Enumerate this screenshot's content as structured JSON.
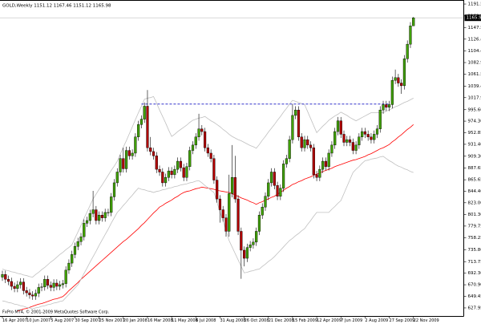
{
  "chart_data": {
    "type": "candlestick",
    "title": "GOLD,Weekly  1151.12 1167.46 1151.12 1165.98",
    "footer": "FxPro MT4, © 2001-2009 MetaQuotes Software Corp.",
    "up_color": "#3fa000",
    "down_color": "#b00000",
    "categories": [
      "16 Apr 2007",
      null,
      null,
      null,
      null,
      null,
      null,
      null,
      "10 Jun 2007",
      null,
      null,
      null,
      null,
      null,
      null,
      null,
      "5 Aug 2007",
      null,
      null,
      null,
      null,
      null,
      null,
      null,
      "30 Sep 2007",
      null,
      null,
      null,
      null,
      null,
      null,
      null,
      "25 Nov 2007",
      null,
      null,
      null,
      null,
      null,
      null,
      null,
      "20 Jan 2008",
      null,
      null,
      null,
      null,
      null,
      null,
      null,
      "16 Mar 2008",
      null,
      null,
      null,
      null,
      null,
      null,
      null,
      "11 May 2008",
      null,
      null,
      null,
      null,
      null,
      null,
      null,
      "6 Jul 2008",
      null,
      null,
      null,
      null,
      null,
      null,
      null,
      "31 Aug 2008",
      null,
      null,
      null,
      null,
      null,
      null,
      null,
      "26 Oct 2008",
      null,
      null,
      null,
      null,
      null,
      null,
      null,
      "21 Dec 2008",
      null,
      null,
      null,
      null,
      null,
      null,
      null,
      "15 Feb 2009",
      null,
      null,
      null,
      null,
      null,
      null,
      null,
      "12 Apr 2009",
      null,
      null,
      null,
      null,
      null,
      null,
      null,
      "7 Jun 2009",
      null,
      null,
      null,
      null,
      null,
      null,
      null,
      "2 Aug 2009",
      null,
      null,
      null,
      null,
      null,
      null,
      null,
      "27 Sep 2009",
      null,
      null,
      null,
      null,
      null,
      null,
      null,
      "22 Nov 2009"
    ],
    "open": [
      685,
      690,
      681,
      677,
      668,
      664,
      671,
      676,
      660,
      656,
      652,
      650,
      655,
      666,
      667,
      681,
      670,
      666,
      674,
      668,
      671,
      673,
      698,
      711,
      727,
      742,
      751,
      760,
      785,
      790,
      803,
      810,
      790,
      800,
      795,
      805,
      805,
      834,
      860,
      880,
      905,
      886,
      920,
      910,
      915,
      945,
      968,
      978,
      1002,
      925,
      918,
      910,
      885,
      880,
      860,
      870,
      882,
      875,
      885,
      900,
      888,
      870,
      890,
      920,
      930,
      945,
      960,
      955,
      925,
      915,
      905,
      865,
      830,
      810,
      795,
      770,
      840,
      870,
      830,
      770,
      735,
      720,
      740,
      745,
      750,
      770,
      800,
      815,
      835,
      860,
      880,
      855,
      835,
      850,
      895,
      905,
      940,
      985,
      995,
      945,
      925,
      940,
      930,
      925,
      875,
      870,
      885,
      900,
      890,
      915,
      930,
      955,
      975,
      950,
      935,
      940,
      935,
      920,
      930,
      945,
      955,
      950,
      945,
      940,
      950,
      960,
      995,
      1005,
      1000,
      1005,
      1050,
      1055,
      1045,
      1040,
      1090,
      1117,
      1151.12
    ],
    "high": [
      697,
      697,
      688,
      684,
      675,
      678,
      683,
      683,
      667,
      663,
      659,
      662,
      673,
      674,
      688,
      688,
      677,
      681,
      681,
      678,
      680,
      705,
      718,
      734,
      749,
      758,
      767,
      792,
      797,
      810,
      845,
      817,
      807,
      807,
      812,
      812,
      841,
      867,
      887,
      912,
      925,
      927,
      927,
      922,
      952,
      975,
      985,
      1009,
      1032,
      945,
      925,
      917,
      892,
      887,
      877,
      889,
      889,
      892,
      907,
      907,
      895,
      897,
      927,
      937,
      952,
      988,
      967,
      962,
      932,
      922,
      912,
      872,
      837,
      817,
      802,
      875,
      930,
      910,
      837,
      777,
      742,
      747,
      752,
      757,
      777,
      807,
      822,
      842,
      867,
      887,
      887,
      862,
      857,
      902,
      912,
      947,
      1006,
      1002,
      1002,
      952,
      947,
      947,
      937,
      932,
      882,
      892,
      907,
      907,
      922,
      937,
      962,
      982,
      982,
      957,
      947,
      947,
      942,
      937,
      952,
      962,
      962,
      957,
      952,
      957,
      967,
      1002,
      1012,
      1012,
      1012,
      1057,
      1070,
      1062,
      1052,
      1097,
      1124,
      1158,
      1167.46
    ],
    "low": [
      678,
      674,
      670,
      661,
      657,
      657,
      664,
      653,
      649,
      645,
      643,
      643,
      648,
      659,
      660,
      663,
      659,
      659,
      661,
      661,
      664,
      666,
      691,
      704,
      720,
      735,
      744,
      753,
      778,
      783,
      796,
      783,
      783,
      788,
      788,
      798,
      798,
      827,
      853,
      873,
      879,
      879,
      903,
      903,
      908,
      938,
      961,
      971,
      918,
      911,
      903,
      878,
      873,
      853,
      853,
      863,
      868,
      868,
      878,
      881,
      863,
      863,
      883,
      913,
      923,
      938,
      948,
      918,
      908,
      898,
      858,
      823,
      786,
      788,
      760,
      760,
      833,
      823,
      763,
      682,
      705,
      713,
      733,
      738,
      743,
      763,
      793,
      808,
      828,
      853,
      848,
      828,
      828,
      843,
      888,
      898,
      933,
      978,
      938,
      918,
      918,
      923,
      918,
      868,
      863,
      863,
      878,
      883,
      883,
      908,
      923,
      948,
      943,
      928,
      928,
      928,
      913,
      913,
      923,
      938,
      943,
      938,
      933,
      933,
      943,
      953,
      988,
      993,
      993,
      998,
      1043,
      1038,
      1025,
      1033,
      1083,
      1110,
      1151.12
    ],
    "close": [
      690,
      681,
      677,
      668,
      664,
      671,
      676,
      660,
      656,
      652,
      650,
      655,
      666,
      667,
      681,
      670,
      666,
      674,
      668,
      671,
      673,
      698,
      711,
      727,
      742,
      751,
      760,
      785,
      790,
      803,
      810,
      790,
      800,
      795,
      805,
      805,
      834,
      860,
      880,
      905,
      886,
      920,
      910,
      915,
      945,
      968,
      978,
      1002,
      925,
      918,
      910,
      885,
      880,
      860,
      870,
      882,
      875,
      885,
      900,
      888,
      870,
      890,
      920,
      930,
      945,
      960,
      955,
      925,
      915,
      905,
      865,
      830,
      810,
      795,
      770,
      840,
      870,
      830,
      770,
      735,
      720,
      740,
      745,
      750,
      770,
      800,
      815,
      835,
      860,
      880,
      855,
      835,
      850,
      895,
      905,
      940,
      985,
      995,
      945,
      925,
      940,
      930,
      925,
      875,
      870,
      885,
      900,
      890,
      915,
      930,
      955,
      975,
      950,
      935,
      940,
      935,
      920,
      930,
      945,
      955,
      950,
      945,
      940,
      950,
      960,
      995,
      1005,
      1000,
      1005,
      1050,
      1055,
      1045,
      1040,
      1090,
      1117,
      1151,
      1165.98
    ],
    "lines": [
      {
        "color": "#ff0000",
        "values": [
          null,
          null,
          null,
          null,
          null,
          622,
          624,
          626,
          627,
          629,
          631,
          633,
          635,
          636,
          638,
          640,
          642,
          644,
          645,
          647,
          649,
          654,
          660,
          665,
          670,
          675,
          681,
          686,
          691,
          696,
          701,
          706,
          711,
          716,
          721,
          726,
          731,
          736,
          741,
          746,
          751,
          755,
          760,
          765,
          770,
          775,
          781,
          786,
          792,
          798,
          804,
          809,
          815,
          818,
          822,
          825,
          828,
          832,
          835,
          839,
          842,
          844,
          845,
          847,
          849,
          850,
          852,
          851,
          850,
          849,
          848,
          846,
          845,
          844,
          843,
          842,
          840,
          837,
          835,
          832,
          830,
          828,
          825,
          823,
          820,
          823,
          825,
          828,
          830,
          833,
          835,
          839,
          842,
          846,
          850,
          853,
          857,
          859,
          862,
          864,
          867,
          869,
          871,
          874,
          876,
          878,
          881,
          883,
          885,
          887,
          890,
          892,
          894,
          896,
          898,
          900,
          902,
          903,
          905,
          907,
          909,
          912,
          914,
          917,
          920,
          923,
          925,
          928,
          931,
          936,
          940,
          945,
          949,
          954,
          959,
          963,
          968
        ]
      },
      {
        "color": "#c0c0c0",
        "values": [
          700,
          698,
          697,
          695,
          694,
          692,
          691,
          689,
          688,
          686,
          685,
          690,
          694,
          699,
          703,
          708,
          713,
          717,
          722,
          727,
          731,
          736,
          740,
          745,
          757,
          769,
          781,
          794,
          806,
          818,
          830,
          839,
          848,
          856,
          865,
          874,
          883,
          891,
          900,
          913,
          926,
          938,
          951,
          964,
          977,
          990,
          1002,
          1015,
          1017,
          1018,
          1020,
          1008,
          995,
          983,
          971,
          958,
          946,
          950,
          955,
          959,
          963,
          967,
          972,
          976,
          978,
          980,
          981,
          983,
          979,
          975,
          972,
          968,
          964,
          959,
          955,
          950,
          946,
          943,
          940,
          938,
          935,
          932,
          929,
          927,
          924,
          931,
          939,
          946,
          954,
          961,
          968,
          976,
          983,
          991,
          998,
          1006,
          1013,
          1011,
          1009,
          1007,
          1005,
          992,
          979,
          966,
          953,
          959,
          965,
          970,
          976,
          980,
          984,
          987,
          991,
          988,
          985,
          981,
          978,
          975,
          978,
          981,
          984,
          987,
          990,
          990,
          990,
          990,
          990,
          993,
          995,
          998,
          1001,
          1003,
          1006,
          1009,
          1011,
          1014,
          1017
        ]
      },
      {
        "color": "#c0c0c0",
        "values": [
          641,
          640,
          638,
          637,
          635,
          634,
          632,
          631,
          629,
          628,
          626,
          628,
          629,
          631,
          632,
          634,
          635,
          637,
          638,
          640,
          641,
          647,
          653,
          659,
          665,
          671,
          681,
          692,
          702,
          713,
          723,
          733,
          744,
          754,
          764,
          774,
          785,
          795,
          805,
          811,
          818,
          824,
          831,
          837,
          844,
          850,
          848,
          847,
          845,
          844,
          842,
          844,
          845,
          847,
          848,
          850,
          851,
          853,
          854,
          856,
          857,
          858,
          860,
          861,
          863,
          864,
          860,
          855,
          851,
          846,
          842,
          824,
          806,
          789,
          771,
          753,
          741,
          729,
          717,
          705,
          693,
          694,
          696,
          697,
          699,
          700,
          705,
          709,
          714,
          718,
          723,
          729,
          735,
          741,
          747,
          753,
          757,
          762,
          766,
          771,
          775,
          783,
          790,
          798,
          805,
          805,
          805,
          805,
          805,
          811,
          816,
          822,
          827,
          840,
          853,
          866,
          879,
          885,
          890,
          896,
          901,
          902,
          904,
          905,
          906,
          908,
          909,
          905,
          901,
          898,
          894,
          891,
          889,
          886,
          884,
          881,
          879
        ]
      }
    ],
    "hline": {
      "value": 1006,
      "color": "#3333cc"
    },
    "current_price": {
      "value": 1165.98,
      "label": "1165.98"
    },
    "ylim": [
      613,
      1199
    ],
    "yticks": [
      {
        "value": 1191.5,
        "label": "1191.50"
      },
      {
        "value": 1169.55,
        "label": "1169.55"
      },
      {
        "value": 1147.55,
        "label": "1147.55"
      },
      {
        "value": 1126.4,
        "label": "1126.40"
      },
      {
        "value": 1104.4,
        "label": "1104.40"
      },
      {
        "value": 1082.95,
        "label": "1082.95"
      },
      {
        "value": 1061.5,
        "label": "1061.50"
      },
      {
        "value": 1039.4,
        "label": "1039.40"
      },
      {
        "value": 1017.9,
        "label": "1017.90"
      },
      {
        "value": 995.6,
        "label": "995.60"
      },
      {
        "value": 974.3,
        "label": "974.30"
      },
      {
        "value": 952.85,
        "label": "952.85"
      },
      {
        "value": 931.4,
        "label": "931.40"
      },
      {
        "value": 909.3,
        "label": "909.30"
      },
      {
        "value": 887.65,
        "label": "887.65"
      },
      {
        "value": 865.65,
        "label": "865.65"
      },
      {
        "value": 844.4,
        "label": "844.40"
      },
      {
        "value": 823,
        "label": "823.00"
      },
      {
        "value": 801.3,
        "label": "801.30"
      },
      {
        "value": 779.75,
        "label": "779.75"
      },
      {
        "value": 758.25,
        "label": "758.25"
      },
      {
        "value": 735.8,
        "label": "735.80"
      },
      {
        "value": 713.75,
        "label": "713.75"
      },
      {
        "value": 692.3,
        "label": "692.30"
      },
      {
        "value": 670.9,
        "label": "670.90"
      },
      {
        "value": 649.45,
        "label": "649.45"
      },
      {
        "value": 627.95,
        "label": "627.95"
      }
    ]
  }
}
